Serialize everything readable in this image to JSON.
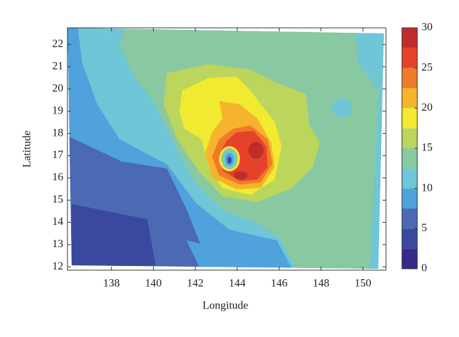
{
  "chart_data": {
    "type": "contour",
    "xlabel": "Longitude",
    "ylabel": "Latitude",
    "xlim": [
      135.9,
      151.1
    ],
    "xticks": [
      138,
      140,
      142,
      144,
      146,
      148,
      150
    ],
    "ylim": [
      11.85,
      22.75
    ],
    "yticks": [
      12,
      13,
      14,
      15,
      16,
      17,
      18,
      19,
      20,
      21,
      22
    ],
    "levels": [
      0,
      2.5,
      5,
      7.5,
      10,
      12.5,
      15,
      17.5,
      20,
      22.5,
      25,
      27.5,
      30
    ],
    "colors": [
      "#352a87",
      "#3b48a0",
      "#4b6ab3",
      "#4fa2dc",
      "#6ec6d6",
      "#88c9a2",
      "#bcd55c",
      "#f2ea30",
      "#f5b42b",
      "#ef7b28",
      "#e6422b",
      "#bf2d2b"
    ],
    "cbar_ticks": [
      0,
      5,
      10,
      15,
      20,
      25,
      30
    ]
  }
}
